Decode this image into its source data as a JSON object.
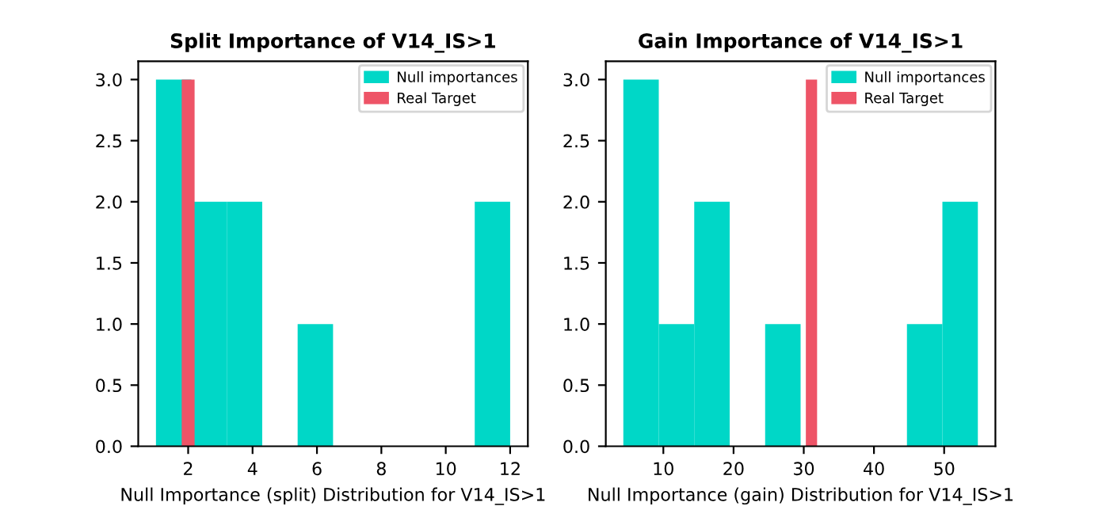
{
  "chart_data": [
    {
      "type": "histogram",
      "title": "Split Importance of V14_IS>1",
      "xlabel": "Null Importance (split) Distribution for V14_IS>1",
      "bins": [
        1,
        2.1,
        3.2,
        4.3,
        5.4,
        6.5,
        7.6,
        8.7,
        9.8,
        10.9,
        12
      ],
      "series": [
        {
          "name": "Null importances",
          "color": "#00d7c7",
          "values": [
            3,
            2,
            2,
            0,
            1,
            0,
            0,
            0,
            0,
            2
          ]
        },
        {
          "name": "Real Target",
          "type": "histogram",
          "color": "#ee5467",
          "bins": [
            1.8,
            2.2
          ],
          "values": [
            3
          ]
        }
      ],
      "xlim": [
        0.45,
        12.55
      ],
      "xticks": [
        2,
        4,
        6,
        8,
        10,
        12
      ],
      "ylim": [
        0,
        3.15
      ],
      "yticks": [
        {
          "value": 0,
          "label": "0.0"
        },
        {
          "value": 0.5,
          "label": "0.5"
        },
        {
          "value": 1,
          "label": "1.0"
        },
        {
          "value": 1.5,
          "label": "1.5"
        },
        {
          "value": 2,
          "label": "2.0"
        },
        {
          "value": 2.5,
          "label": "2.5"
        },
        {
          "value": 3,
          "label": "3.0"
        }
      ],
      "legend": "top right"
    },
    {
      "type": "histogram",
      "title": "Gain Importance of V14_IS>1",
      "xlabel": "Null Importance (gain) Distribution for V14_IS>1",
      "bins": [
        4.3,
        9.35,
        14.4,
        19.45,
        24.5,
        29.55,
        34.6,
        39.65,
        44.7,
        49.75,
        54.8
      ],
      "series": [
        {
          "name": "Null importances",
          "color": "#00d7c7",
          "values": [
            3,
            1,
            2,
            0,
            1,
            0,
            0,
            0,
            1,
            2
          ]
        },
        {
          "name": "Real Target",
          "type": "histogram",
          "color": "#ee5467",
          "bins": [
            30.3,
            31.9
          ],
          "values": [
            3
          ]
        }
      ],
      "xlim": [
        1.8,
        57.3
      ],
      "xticks": [
        10,
        20,
        30,
        40,
        50
      ],
      "ylim": [
        0,
        3.15
      ],
      "yticks": [
        {
          "value": 0,
          "label": "0.0"
        },
        {
          "value": 0.5,
          "label": "0.5"
        },
        {
          "value": 1,
          "label": "1.0"
        },
        {
          "value": 1.5,
          "label": "1.5"
        },
        {
          "value": 2,
          "label": "2.0"
        },
        {
          "value": 2.5,
          "label": "2.5"
        },
        {
          "value": 3,
          "label": "3.0"
        }
      ],
      "legend": "top right"
    }
  ]
}
